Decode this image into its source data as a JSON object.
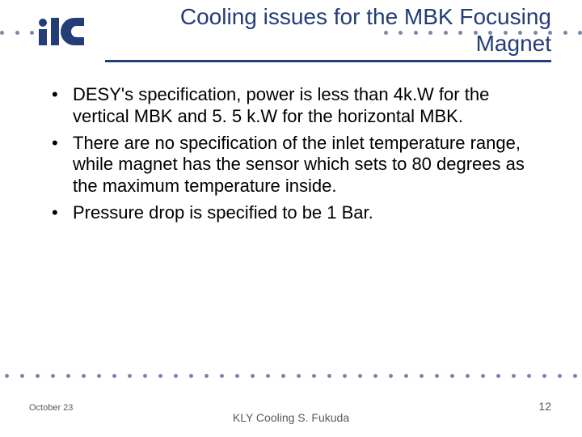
{
  "colors": {
    "brand": "#243c78",
    "title": "#243c78",
    "body_text": "#000000",
    "footer_text": "#5a5a5a",
    "dot": "#7a87a8",
    "underline": "#243c78"
  },
  "title": "Cooling issues for the MBK Focusing Magnet",
  "bullets": [
    "DESY's specification, power is less than 4k.W for the vertical MBK and 5. 5 k.W for the horizontal MBK.",
    "There are no specification of the inlet temperature range, while magnet has the sensor which sets to 80 degrees as the maximum temperature inside.",
    "Pressure drop is specified to be 1 Bar."
  ],
  "footer": {
    "date": "October 23",
    "center": "KLY Cooling   S. Fukuda",
    "page": "12"
  },
  "logo": {
    "name": "ilc-logo"
  },
  "dots": {
    "top_left_count": 3,
    "top_right_count": 14,
    "bottom_count": 38
  }
}
